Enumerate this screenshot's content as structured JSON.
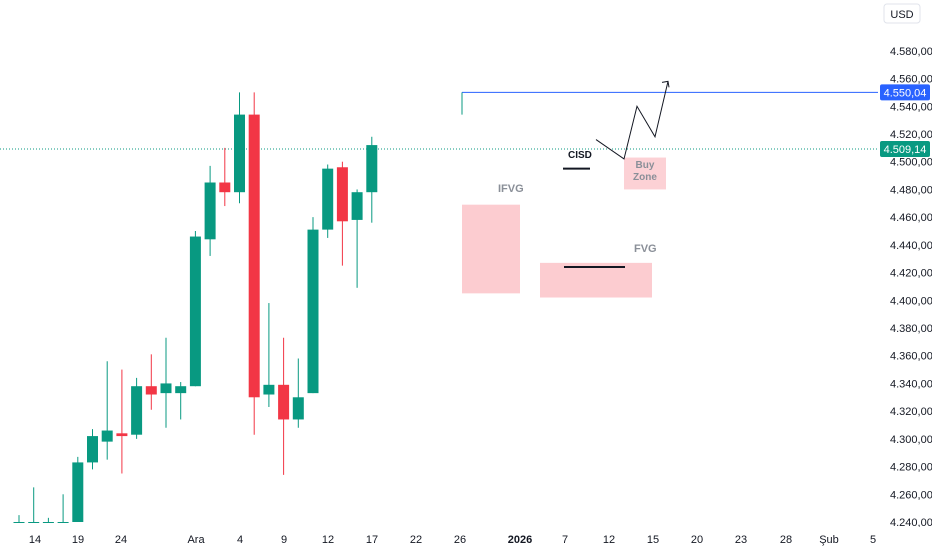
{
  "currency_label": "USD",
  "price_axis": {
    "ticks": [
      "4.580,00",
      "4.560,00",
      "4.540,00",
      "4.520,00",
      "4.500,00",
      "4.480,00",
      "4.460,00",
      "4.440,00",
      "4.420,00",
      "4.400,00",
      "4.380,00",
      "4.360,00",
      "4.340,00",
      "4.320,00",
      "4.300,00",
      "4.280,00",
      "4.260,00",
      "4.240,00"
    ],
    "current_price_label": "4.509,14",
    "level_label": "4.550,04"
  },
  "time_axis": {
    "labels": [
      "14",
      "19",
      "24",
      "Ara",
      "4",
      "9",
      "12",
      "17",
      "22",
      "26",
      "2026",
      "7",
      "12",
      "15",
      "20",
      "23",
      "28",
      "Şub",
      "5"
    ],
    "bold_labels": [
      "2026"
    ]
  },
  "annotations": {
    "ifvg": "IFVG",
    "fvg": "FVG",
    "cisd": "CISD",
    "buy_zone_line1": "Buy",
    "buy_zone_line2": "Zone"
  },
  "colors": {
    "up": "#089981",
    "down": "#f23645",
    "level_line": "#2962ff",
    "current_price": "#089981",
    "zone_fill": "#fcc9ce",
    "axis_text": "#131722"
  },
  "chart_data": {
    "type": "candlestick",
    "symbol_currency": "USD",
    "ylim": [
      4240,
      4590
    ],
    "current_price": 4509.14,
    "key_level": 4550.04,
    "candles": [
      {
        "o": 4240,
        "h": 4245,
        "l": 4240,
        "c": 4240
      },
      {
        "o": 4240,
        "h": 4265,
        "l": 4240,
        "c": 4240
      },
      {
        "o": 4240,
        "h": 4243,
        "l": 4240,
        "c": 4240
      },
      {
        "o": 4240,
        "h": 4260,
        "l": 4240,
        "c": 4240
      },
      {
        "o": 4240,
        "h": 4287,
        "l": 4240,
        "c": 4283
      },
      {
        "o": 4283,
        "h": 4307,
        "l": 4278,
        "c": 4302
      },
      {
        "o": 4298,
        "h": 4356,
        "l": 4285,
        "c": 4306
      },
      {
        "o": 4304,
        "h": 4350,
        "l": 4275,
        "c": 4302
      },
      {
        "o": 4303,
        "h": 4344,
        "l": 4300,
        "c": 4338
      },
      {
        "o": 4338,
        "h": 4361,
        "l": 4321,
        "c": 4332
      },
      {
        "o": 4333,
        "h": 4373,
        "l": 4308,
        "c": 4340
      },
      {
        "o": 4333,
        "h": 4341,
        "l": 4314,
        "c": 4338
      },
      {
        "o": 4338,
        "h": 4450,
        "l": 4338,
        "c": 4446
      },
      {
        "o": 4444,
        "h": 4497,
        "l": 4432,
        "c": 4485
      },
      {
        "o": 4485,
        "h": 4510,
        "l": 4468,
        "c": 4478
      },
      {
        "o": 4478,
        "h": 4550,
        "l": 4470,
        "c": 4534
      },
      {
        "o": 4534,
        "h": 4550,
        "l": 4303,
        "c": 4330
      },
      {
        "o": 4332,
        "h": 4398,
        "l": 4323,
        "c": 4339
      },
      {
        "o": 4339,
        "h": 4373,
        "l": 4274,
        "c": 4314
      },
      {
        "o": 4314,
        "h": 4358,
        "l": 4308,
        "c": 4330
      },
      {
        "o": 4333,
        "h": 4460,
        "l": 4333,
        "c": 4451
      },
      {
        "o": 4451,
        "h": 4498,
        "l": 4445,
        "c": 4495
      },
      {
        "o": 4496,
        "h": 4500,
        "l": 4425,
        "c": 4457
      },
      {
        "o": 4458,
        "h": 4480,
        "l": 4409,
        "c": 4478
      },
      {
        "o": 4478,
        "h": 4518,
        "l": 4456,
        "c": 4512
      }
    ],
    "zones": [
      {
        "label": "IFVG",
        "top": 4469,
        "bottom": 4405
      },
      {
        "label": "FVG",
        "top": 4427,
        "bottom": 4402
      },
      {
        "label": "Buy Zone",
        "top": 4503,
        "bottom": 4480
      }
    ],
    "cisd_level": 4495,
    "fvg_line_level": 4424,
    "projection_path": [
      4516,
      4502,
      4540,
      4518,
      4558
    ]
  }
}
